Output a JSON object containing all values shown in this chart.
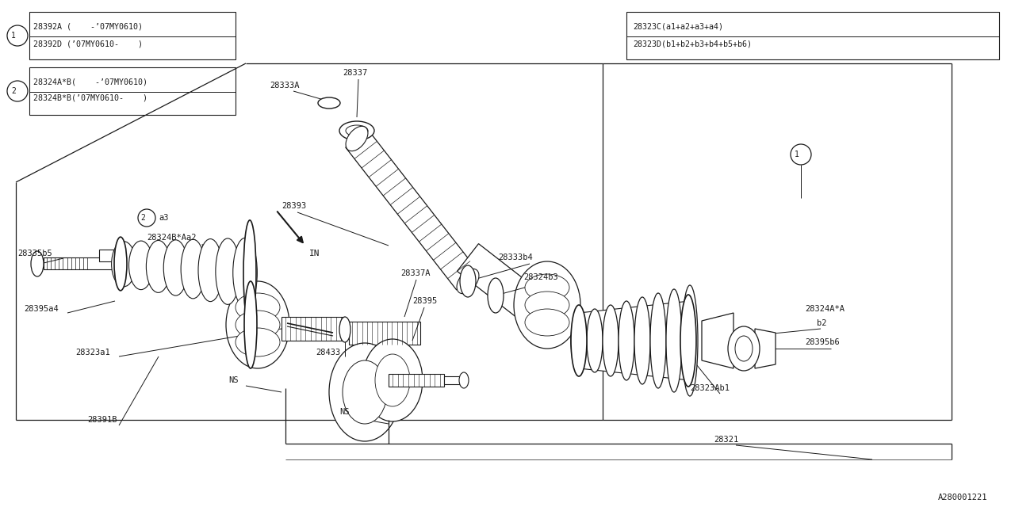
{
  "bg_color": "#ffffff",
  "line_color": "#1a1a1a",
  "fig_width": 12.8,
  "fig_height": 6.4,
  "watermark": "A280001221",
  "legend1_rows": [
    "28392A (    -’07MY0610)",
    "28392D (’07MY0610-    )"
  ],
  "legend2_rows": [
    "28324A*B(    -’07MY0610)",
    "28324B*B(’07MY0610-    )"
  ],
  "legend3_rows": [
    "28323C(a1+a2+a3+a4)",
    "28323D(b1+b2+b3+b4+b5+b6)"
  ]
}
